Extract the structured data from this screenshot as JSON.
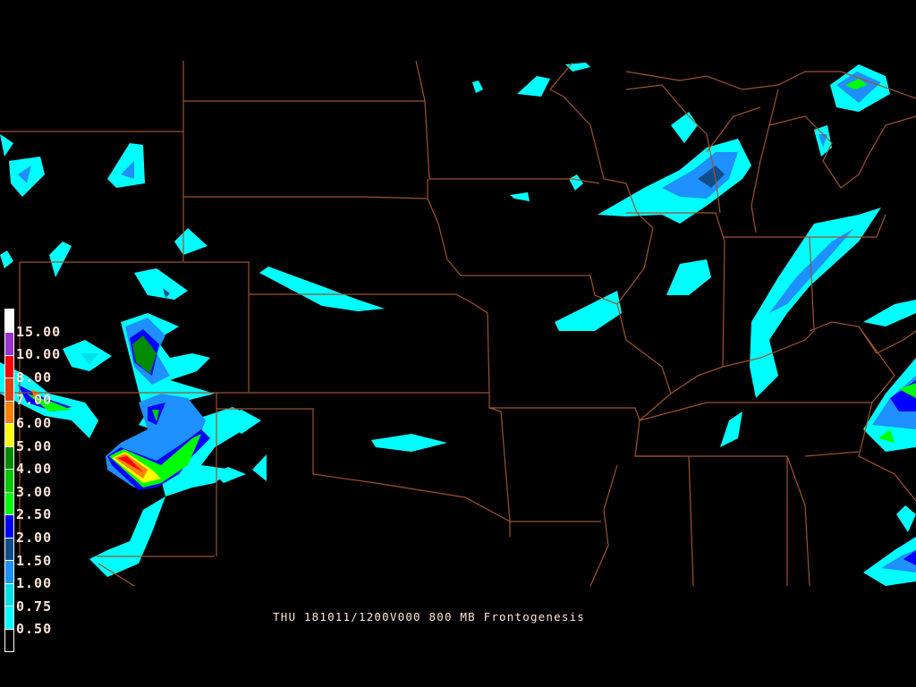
{
  "caption": "THU 181011/1200V000 800 MB Frontogenesis",
  "legend": {
    "labels": [
      "0.50",
      "0.75",
      "1.00",
      "1.50",
      "2.00",
      "2.50",
      "3.00",
      "4.00",
      "5.00",
      "6.00",
      "7.00",
      "8.00",
      "10.00",
      "15.00"
    ],
    "colors": [
      "#000000",
      "#00ffff",
      "#00e0e8",
      "#1e90ff",
      "#104e8b",
      "#0000ff",
      "#00ff00",
      "#00c800",
      "#008b00",
      "#ffff00",
      "#ff8000",
      "#e04010",
      "#ff0000",
      "#9a32cd",
      "#ffffff"
    ]
  },
  "map": {
    "border_color": "#a0522d",
    "background": "#000000"
  }
}
